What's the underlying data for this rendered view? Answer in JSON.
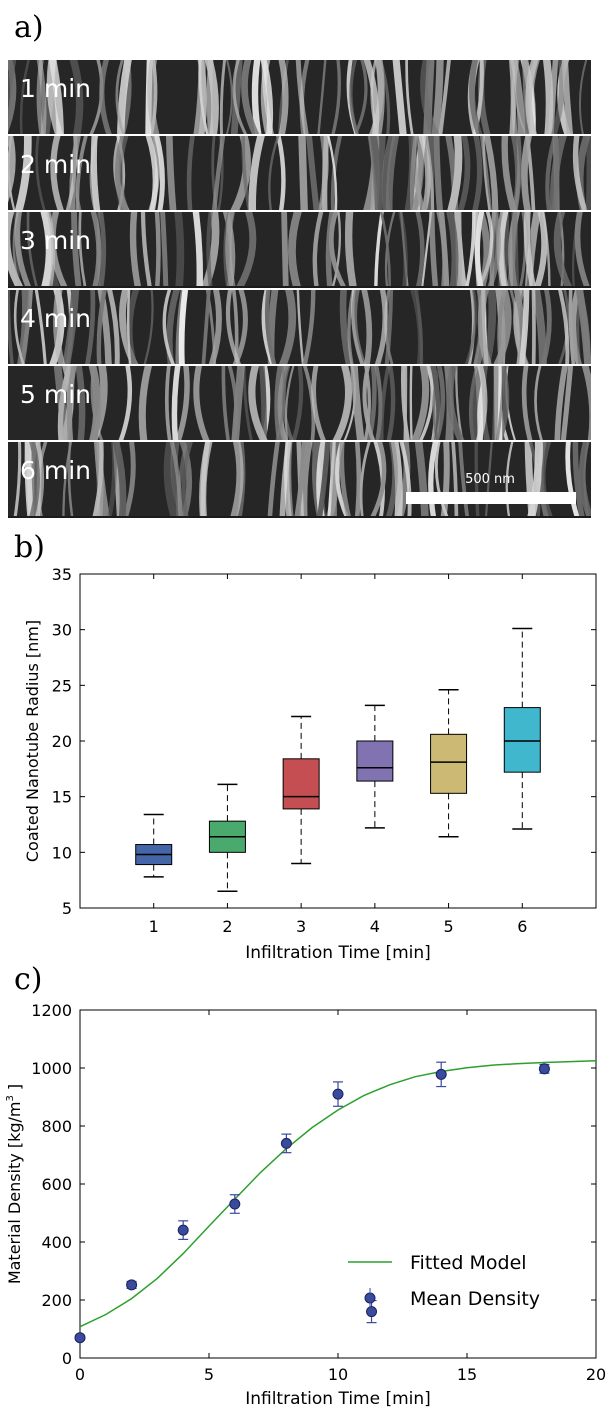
{
  "panels": {
    "a": {
      "letter": "a)",
      "strips": [
        {
          "label": "1 min"
        },
        {
          "label": "2 min"
        },
        {
          "label": "3 min"
        },
        {
          "label": "4 min"
        },
        {
          "label": "5 min"
        },
        {
          "label": "6 min"
        }
      ],
      "scale_bar_label": "500 nm"
    },
    "b": {
      "letter": "b)"
    },
    "c": {
      "letter": "c)"
    }
  },
  "chart_data": [
    {
      "type": "box",
      "panel": "b",
      "xlabel": "Infiltration Time [min]",
      "ylabel": "Coated Nanotube Radius [nm]",
      "ylim": [
        5,
        35
      ],
      "yticks": [
        5,
        10,
        15,
        20,
        25,
        30,
        35
      ],
      "categories": [
        "1",
        "2",
        "3",
        "4",
        "5",
        "6"
      ],
      "boxes": [
        {
          "category": "1",
          "whisker_low": 7.8,
          "q1": 8.9,
          "median": 9.8,
          "q3": 10.7,
          "whisker_high": 13.4,
          "color": "#4466a8"
        },
        {
          "category": "2",
          "whisker_low": 6.5,
          "q1": 10.0,
          "median": 11.4,
          "q3": 12.8,
          "whisker_high": 16.1,
          "color": "#4aa96c"
        },
        {
          "category": "3",
          "whisker_low": 9.0,
          "q1": 13.9,
          "median": 15.0,
          "q3": 18.4,
          "whisker_high": 22.2,
          "color": "#c44e52"
        },
        {
          "category": "4",
          "whisker_low": 12.2,
          "q1": 16.4,
          "median": 17.6,
          "q3": 20.0,
          "whisker_high": 23.2,
          "color": "#8172b2"
        },
        {
          "category": "5",
          "whisker_low": 11.4,
          "q1": 15.3,
          "median": 18.1,
          "q3": 20.6,
          "whisker_high": 24.6,
          "color": "#ccb974"
        },
        {
          "category": "6",
          "whisker_low": 12.1,
          "q1": 17.2,
          "median": 20.0,
          "q3": 23.0,
          "whisker_high": 30.1,
          "color": "#40b7cc"
        }
      ]
    },
    {
      "type": "scatter",
      "panel": "c",
      "xlabel": "Infiltration Time [min]",
      "ylabel": "Material Density [kg/m",
      "ylabel_sup": "3",
      "ylabel_end": " ]",
      "xlim": [
        0,
        20
      ],
      "ylim": [
        0,
        1200
      ],
      "xticks": [
        0,
        5,
        10,
        15,
        20
      ],
      "yticks": [
        0,
        200,
        400,
        600,
        800,
        1000,
        1200
      ],
      "legend_position": "bottom-right",
      "series": [
        {
          "name": "Fitted Model",
          "kind": "line",
          "color": "#2ca02c",
          "x": [
            0,
            1,
            2,
            3,
            4,
            5,
            6,
            7,
            8,
            9,
            10,
            11,
            12,
            13,
            14,
            15,
            16,
            17,
            18,
            19,
            20
          ],
          "y": [
            108,
            150,
            205,
            275,
            360,
            455,
            548,
            640,
            722,
            795,
            855,
            905,
            942,
            970,
            988,
            1001,
            1010,
            1015,
            1019,
            1022,
            1025
          ]
        },
        {
          "name": "Mean Density",
          "kind": "points",
          "color": "#3a4a9c",
          "x": [
            0,
            2,
            4,
            6,
            8,
            10,
            11.3,
            14,
            18
          ],
          "y": [
            70,
            252,
            441,
            531,
            740,
            910,
            160,
            978,
            997
          ],
          "err": [
            8,
            12,
            32,
            32,
            32,
            42,
            38,
            42,
            15
          ]
        }
      ]
    }
  ]
}
